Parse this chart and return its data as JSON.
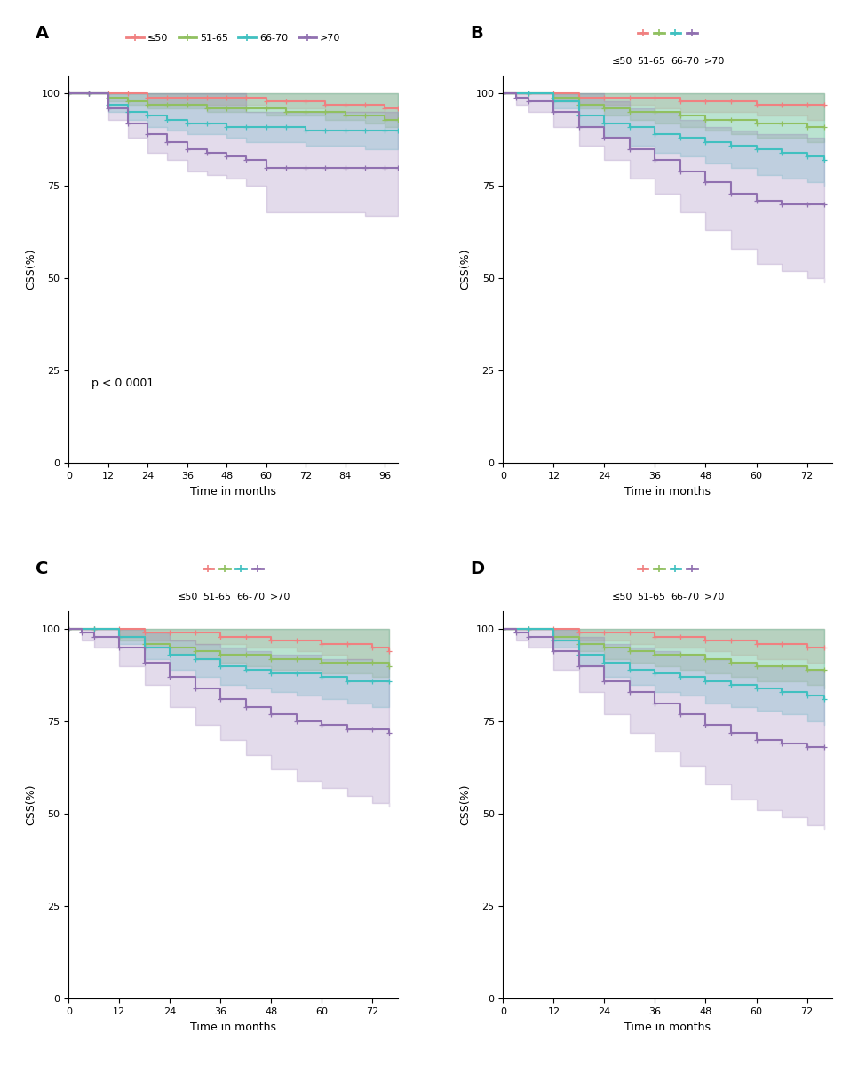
{
  "colors": {
    "le50": "#F08080",
    "51_65": "#90C060",
    "66_70": "#40C0C0",
    "gt70": "#9070B0"
  },
  "fill_alpha": 0.25,
  "line_width": 1.5,
  "labels": [
    "≤50",
    "51-65",
    "66-70",
    ">70"
  ],
  "ylabel": "CSS(%)",
  "xlabel": "Time in months",
  "panel_labels": [
    "A",
    "B",
    "C",
    "D"
  ],
  "pvalue_A": "p < 0.0001",
  "A": {
    "xlim": [
      0,
      100
    ],
    "xticks": [
      0,
      12,
      24,
      36,
      48,
      60,
      72,
      84,
      96
    ],
    "ylim": [
      0,
      105
    ],
    "yticks": [
      0,
      25,
      50,
      75,
      100
    ],
    "le50": {
      "t": [
        0,
        6,
        12,
        18,
        24,
        30,
        36,
        42,
        48,
        54,
        60,
        66,
        72,
        78,
        84,
        90,
        96,
        100
      ],
      "surv": [
        100,
        100,
        100,
        100,
        99,
        99,
        99,
        99,
        99,
        99,
        98,
        98,
        98,
        97,
        97,
        97,
        96,
        96
      ],
      "lo": [
        100,
        100,
        100,
        100,
        97,
        97,
        97,
        97,
        97,
        97,
        96,
        96,
        96,
        95,
        95,
        95,
        93,
        93
      ],
      "hi": [
        100,
        100,
        100,
        100,
        100,
        100,
        100,
        100,
        100,
        100,
        100,
        100,
        100,
        100,
        100,
        100,
        100,
        100
      ]
    },
    "51_65": {
      "t": [
        0,
        6,
        12,
        18,
        24,
        30,
        36,
        42,
        48,
        54,
        60,
        66,
        72,
        78,
        84,
        90,
        96,
        100
      ],
      "surv": [
        100,
        100,
        99,
        98,
        97,
        97,
        97,
        96,
        96,
        96,
        96,
        95,
        95,
        95,
        94,
        94,
        93,
        93
      ],
      "lo": [
        100,
        100,
        98,
        97,
        96,
        96,
        96,
        95,
        95,
        95,
        94,
        94,
        94,
        93,
        93,
        92,
        91,
        91
      ],
      "hi": [
        100,
        100,
        100,
        100,
        100,
        100,
        100,
        100,
        100,
        100,
        100,
        100,
        100,
        100,
        100,
        100,
        100,
        100
      ]
    },
    "66_70": {
      "t": [
        0,
        6,
        12,
        18,
        24,
        30,
        36,
        42,
        48,
        54,
        60,
        66,
        72,
        78,
        84,
        90,
        96,
        100
      ],
      "surv": [
        100,
        100,
        97,
        95,
        94,
        93,
        92,
        92,
        91,
        91,
        91,
        91,
        90,
        90,
        90,
        90,
        90,
        90
      ],
      "lo": [
        100,
        100,
        95,
        93,
        91,
        90,
        89,
        89,
        88,
        87,
        87,
        87,
        86,
        86,
        86,
        85,
        85,
        85
      ],
      "hi": [
        100,
        100,
        100,
        100,
        100,
        100,
        100,
        100,
        100,
        100,
        100,
        100,
        100,
        100,
        100,
        100,
        100,
        100
      ]
    },
    "gt70": {
      "t": [
        0,
        6,
        12,
        18,
        24,
        30,
        36,
        42,
        48,
        54,
        60,
        66,
        72,
        78,
        84,
        90,
        96,
        100
      ],
      "surv": [
        100,
        100,
        96,
        92,
        89,
        87,
        85,
        84,
        83,
        82,
        80,
        80,
        80,
        80,
        80,
        80,
        80,
        80
      ],
      "lo": [
        100,
        100,
        93,
        88,
        84,
        82,
        79,
        78,
        77,
        75,
        68,
        68,
        68,
        68,
        68,
        67,
        67,
        67
      ],
      "hi": [
        100,
        100,
        100,
        100,
        100,
        100,
        100,
        100,
        100,
        95,
        95,
        95,
        95,
        95,
        95,
        95,
        95,
        95
      ]
    }
  },
  "B": {
    "xlim": [
      0,
      78
    ],
    "xticks": [
      0,
      12,
      24,
      36,
      48,
      60,
      72
    ],
    "ylim": [
      0,
      105
    ],
    "yticks": [
      0,
      25,
      50,
      75,
      100
    ],
    "le50": {
      "t": [
        0,
        6,
        12,
        18,
        24,
        30,
        36,
        42,
        48,
        54,
        60,
        66,
        72,
        76
      ],
      "surv": [
        100,
        100,
        100,
        99,
        99,
        99,
        99,
        98,
        98,
        98,
        97,
        97,
        97,
        97
      ],
      "lo": [
        100,
        100,
        98,
        97,
        97,
        97,
        96,
        95,
        95,
        95,
        94,
        94,
        93,
        93
      ],
      "hi": [
        100,
        100,
        100,
        100,
        100,
        100,
        100,
        100,
        100,
        100,
        100,
        100,
        100,
        100
      ]
    },
    "51_65": {
      "t": [
        0,
        6,
        12,
        18,
        24,
        30,
        36,
        42,
        48,
        54,
        60,
        66,
        72,
        76
      ],
      "surv": [
        100,
        100,
        99,
        97,
        96,
        95,
        95,
        94,
        93,
        93,
        92,
        92,
        91,
        91
      ],
      "lo": [
        100,
        100,
        98,
        96,
        94,
        93,
        92,
        91,
        90,
        89,
        88,
        88,
        87,
        87
      ],
      "hi": [
        100,
        100,
        100,
        100,
        100,
        100,
        100,
        100,
        100,
        100,
        100,
        100,
        100,
        100
      ]
    },
    "66_70": {
      "t": [
        0,
        6,
        12,
        18,
        24,
        30,
        36,
        42,
        48,
        54,
        60,
        66,
        72,
        76
      ],
      "surv": [
        100,
        100,
        98,
        94,
        92,
        91,
        89,
        88,
        87,
        86,
        85,
        84,
        83,
        82
      ],
      "lo": [
        100,
        100,
        96,
        91,
        88,
        86,
        84,
        83,
        81,
        80,
        78,
        77,
        76,
        75
      ],
      "hi": [
        100,
        100,
        100,
        100,
        100,
        100,
        100,
        100,
        100,
        100,
        100,
        100,
        100,
        100
      ]
    },
    "gt70": {
      "t": [
        0,
        3,
        6,
        12,
        18,
        24,
        30,
        36,
        42,
        48,
        54,
        60,
        66,
        72,
        76
      ],
      "surv": [
        100,
        99,
        98,
        95,
        91,
        88,
        85,
        82,
        79,
        76,
        73,
        71,
        70,
        70,
        70
      ],
      "lo": [
        100,
        97,
        95,
        91,
        86,
        82,
        77,
        73,
        68,
        63,
        58,
        54,
        52,
        50,
        49
      ],
      "hi": [
        100,
        100,
        100,
        100,
        100,
        98,
        96,
        95,
        93,
        91,
        90,
        89,
        89,
        88,
        88
      ]
    }
  },
  "C": {
    "xlim": [
      0,
      78
    ],
    "xticks": [
      0,
      12,
      24,
      36,
      48,
      60,
      72
    ],
    "ylim": [
      0,
      105
    ],
    "yticks": [
      0,
      25,
      50,
      75,
      100
    ],
    "le50": {
      "t": [
        0,
        6,
        12,
        18,
        24,
        30,
        36,
        42,
        48,
        54,
        60,
        66,
        72,
        76
      ],
      "surv": [
        100,
        100,
        100,
        99,
        99,
        99,
        98,
        98,
        97,
        97,
        96,
        96,
        95,
        94
      ],
      "lo": [
        100,
        100,
        98,
        97,
        97,
        96,
        96,
        95,
        95,
        94,
        93,
        92,
        91,
        90
      ],
      "hi": [
        100,
        100,
        100,
        100,
        100,
        100,
        100,
        100,
        100,
        100,
        100,
        100,
        100,
        100
      ]
    },
    "51_65": {
      "t": [
        0,
        6,
        12,
        18,
        24,
        30,
        36,
        42,
        48,
        54,
        60,
        66,
        72,
        76
      ],
      "surv": [
        100,
        100,
        98,
        96,
        95,
        94,
        93,
        93,
        92,
        92,
        91,
        91,
        91,
        90
      ],
      "lo": [
        100,
        100,
        97,
        95,
        93,
        92,
        91,
        90,
        89,
        89,
        88,
        88,
        87,
        87
      ],
      "hi": [
        100,
        100,
        100,
        100,
        100,
        100,
        100,
        100,
        100,
        100,
        100,
        100,
        100,
        100
      ]
    },
    "66_70": {
      "t": [
        0,
        6,
        12,
        18,
        24,
        30,
        36,
        42,
        48,
        54,
        60,
        66,
        72,
        76
      ],
      "surv": [
        100,
        100,
        98,
        95,
        93,
        92,
        90,
        89,
        88,
        88,
        87,
        86,
        86,
        86
      ],
      "lo": [
        100,
        100,
        96,
        92,
        89,
        87,
        85,
        84,
        83,
        82,
        81,
        80,
        79,
        79
      ],
      "hi": [
        100,
        100,
        100,
        100,
        100,
        100,
        100,
        100,
        100,
        100,
        100,
        100,
        100,
        100
      ]
    },
    "gt70": {
      "t": [
        0,
        3,
        6,
        12,
        18,
        24,
        30,
        36,
        42,
        48,
        54,
        60,
        66,
        72,
        76
      ],
      "surv": [
        100,
        99,
        98,
        95,
        91,
        87,
        84,
        81,
        79,
        77,
        75,
        74,
        73,
        73,
        72
      ],
      "lo": [
        100,
        97,
        95,
        90,
        85,
        79,
        74,
        70,
        66,
        62,
        59,
        57,
        55,
        53,
        52
      ],
      "hi": [
        100,
        100,
        100,
        100,
        99,
        97,
        96,
        95,
        94,
        93,
        93,
        92,
        92,
        91,
        91
      ]
    }
  },
  "D": {
    "xlim": [
      0,
      78
    ],
    "xticks": [
      0,
      12,
      24,
      36,
      48,
      60,
      72
    ],
    "ylim": [
      0,
      105
    ],
    "yticks": [
      0,
      25,
      50,
      75,
      100
    ],
    "le50": {
      "t": [
        0,
        6,
        12,
        18,
        24,
        30,
        36,
        42,
        48,
        54,
        60,
        66,
        72,
        76
      ],
      "surv": [
        100,
        100,
        100,
        99,
        99,
        99,
        98,
        98,
        97,
        97,
        96,
        96,
        95,
        95
      ],
      "lo": [
        100,
        100,
        98,
        97,
        97,
        96,
        95,
        95,
        94,
        93,
        92,
        92,
        91,
        91
      ],
      "hi": [
        100,
        100,
        100,
        100,
        100,
        100,
        100,
        100,
        100,
        100,
        100,
        100,
        100,
        100
      ]
    },
    "51_65": {
      "t": [
        0,
        6,
        12,
        18,
        24,
        30,
        36,
        42,
        48,
        54,
        60,
        66,
        72,
        76
      ],
      "surv": [
        100,
        100,
        98,
        96,
        95,
        94,
        93,
        93,
        92,
        91,
        90,
        90,
        89,
        89
      ],
      "lo": [
        100,
        100,
        97,
        94,
        92,
        91,
        90,
        89,
        88,
        87,
        86,
        86,
        85,
        84
      ],
      "hi": [
        100,
        100,
        100,
        100,
        100,
        100,
        100,
        100,
        100,
        100,
        100,
        100,
        100,
        100
      ]
    },
    "66_70": {
      "t": [
        0,
        6,
        12,
        18,
        24,
        30,
        36,
        42,
        48,
        54,
        60,
        66,
        72,
        76
      ],
      "surv": [
        100,
        100,
        97,
        93,
        91,
        89,
        88,
        87,
        86,
        85,
        84,
        83,
        82,
        81
      ],
      "lo": [
        100,
        100,
        95,
        90,
        87,
        85,
        83,
        82,
        80,
        79,
        78,
        77,
        75,
        74
      ],
      "hi": [
        100,
        100,
        100,
        100,
        100,
        100,
        100,
        100,
        100,
        100,
        100,
        100,
        100,
        100
      ]
    },
    "gt70": {
      "t": [
        0,
        3,
        6,
        12,
        18,
        24,
        30,
        36,
        42,
        48,
        54,
        60,
        66,
        72,
        76
      ],
      "surv": [
        100,
        99,
        98,
        94,
        90,
        86,
        83,
        80,
        77,
        74,
        72,
        70,
        69,
        68,
        68
      ],
      "lo": [
        100,
        97,
        95,
        89,
        83,
        77,
        72,
        67,
        63,
        58,
        54,
        51,
        49,
        47,
        46
      ],
      "hi": [
        100,
        100,
        100,
        100,
        98,
        96,
        95,
        94,
        93,
        92,
        91,
        90,
        90,
        89,
        89
      ]
    }
  }
}
